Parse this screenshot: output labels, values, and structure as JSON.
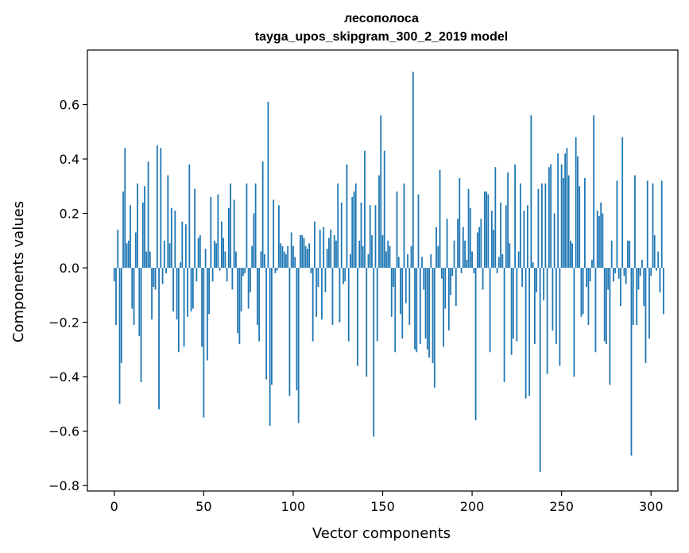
{
  "chart_data": {
    "type": "bar",
    "title": "лесополоса",
    "subtitle": "tayga_upos_skipgram_300_2_2019 model",
    "xlabel": "Vector components",
    "ylabel": "Components values",
    "xlim": [
      -15,
      315
    ],
    "ylim": [
      -0.82,
      0.8
    ],
    "xticks": [
      0,
      50,
      100,
      150,
      200,
      250,
      300
    ],
    "xtick_labels": [
      "0",
      "50",
      "100",
      "150",
      "200",
      "250",
      "300"
    ],
    "yticks": [
      -0.8,
      -0.6,
      -0.4,
      -0.2,
      0.0,
      0.2,
      0.4,
      0.6
    ],
    "ytick_labels": [
      "−0.8",
      "−0.6",
      "−0.4",
      "−0.2",
      "0.0",
      "0.2",
      "0.4",
      "0.6"
    ],
    "bar_color": "#1f77b4",
    "grid": false,
    "values": [
      -0.05,
      -0.21,
      0.14,
      -0.5,
      -0.35,
      0.28,
      0.44,
      0.09,
      0.1,
      0.23,
      -0.15,
      -0.21,
      0.13,
      0.31,
      -0.25,
      -0.42,
      0.24,
      0.3,
      0.06,
      0.39,
      0.06,
      -0.19,
      -0.07,
      -0.08,
      0.45,
      -0.52,
      0.44,
      -0.06,
      0.1,
      -0.02,
      0.34,
      0.09,
      0.22,
      -0.16,
      0.21,
      -0.19,
      -0.31,
      0.02,
      0.17,
      -0.29,
      0.16,
      -0.18,
      0.38,
      -0.16,
      -0.15,
      0.29,
      -0.05,
      0.11,
      0.12,
      -0.29,
      -0.55,
      0.07,
      -0.34,
      -0.17,
      0.26,
      -0.05,
      0.1,
      0.09,
      0.27,
      -0.01,
      0.17,
      0.11,
      0.06,
      -0.05,
      0.22,
      0.31,
      -0.08,
      0.25,
      0.06,
      -0.24,
      -0.28,
      -0.16,
      -0.03,
      -0.02,
      0.31,
      -0.15,
      -0.09,
      0.08,
      0.2,
      0.31,
      -0.21,
      -0.27,
      0.06,
      0.39,
      0.05,
      -0.41,
      0.61,
      -0.58,
      -0.43,
      0.25,
      -0.02,
      -0.01,
      0.23,
      0.09,
      0.08,
      0.06,
      0.05,
      0.08,
      -0.47,
      0.13,
      0.08,
      0.04,
      -0.45,
      -0.57,
      0.12,
      0.12,
      0.11,
      0.08,
      0.07,
      0.09,
      -0.02,
      -0.27,
      0.17,
      -0.18,
      -0.07,
      0.14,
      -0.19,
      0.15,
      -0.09,
      0.07,
      0.11,
      0.14,
      -0.21,
      0.12,
      0.1,
      0.31,
      -0.2,
      0.24,
      -0.06,
      -0.05,
      0.38,
      -0.27,
      0.05,
      0.26,
      0.28,
      0.31,
      -0.36,
      0.1,
      0.24,
      0.08,
      0.43,
      -0.4,
      0.05,
      0.23,
      0.12,
      -0.62,
      0.23,
      -0.27,
      0.34,
      0.56,
      0.12,
      0.43,
      0.06,
      0.1,
      0.08,
      -0.18,
      -0.07,
      -0.31,
      0.28,
      0.04,
      -0.17,
      -0.26,
      0.31,
      -0.13,
      0.05,
      -0.21,
      0.08,
      0.72,
      -0.3,
      -0.31,
      0.27,
      -0.28,
      0.04,
      -0.08,
      -0.26,
      -0.3,
      -0.33,
      0.05,
      -0.35,
      -0.44,
      0.15,
      0.08,
      0.36,
      -0.04,
      -0.29,
      -0.15,
      0.18,
      -0.23,
      -0.1,
      -0.03,
      0.1,
      -0.14,
      0.18,
      0.33,
      -0.02,
      0.15,
      0.1,
      0.03,
      0.29,
      0.22,
      0.06,
      -0.02,
      -0.56,
      0.13,
      0.15,
      0.18,
      -0.08,
      0.28,
      0.28,
      0.27,
      -0.31,
      0.21,
      0.14,
      0.37,
      -0.02,
      0.04,
      0.24,
      0.05,
      -0.42,
      0.23,
      0.35,
      0.09,
      -0.32,
      -0.26,
      0.38,
      -0.27,
      0.06,
      0.31,
      -0.07,
      0.21,
      -0.48,
      0.23,
      -0.47,
      0.56,
      0.02,
      -0.28,
      -0.09,
      0.29,
      -0.75,
      0.31,
      -0.12,
      0.31,
      -0.39,
      0.37,
      0.38,
      -0.23,
      0.2,
      -0.28,
      0.42,
      -0.36,
      0.38,
      0.33,
      0.42,
      0.44,
      0.34,
      0.1,
      0.09,
      -0.4,
      0.48,
      0.41,
      0.3,
      -0.18,
      -0.17,
      0.33,
      -0.07,
      -0.21,
      -0.05,
      0.03,
      0.56,
      -0.31,
      0.21,
      0.19,
      0.24,
      0.2,
      -0.27,
      -0.28,
      -0.08,
      -0.43,
      0.1,
      -0.05,
      -0.02,
      0.32,
      -0.04,
      -0.14,
      0.48,
      -0.03,
      -0.06,
      0.1,
      0.1,
      -0.69,
      -0.21,
      0.34,
      -0.21,
      -0.08,
      -0.03,
      0.03,
      -0.14,
      -0.35,
      0.32,
      -0.26,
      -0.03,
      0.31,
      0.12,
      -0.01,
      0.06,
      -0.09,
      0.32,
      -0.17
    ]
  }
}
